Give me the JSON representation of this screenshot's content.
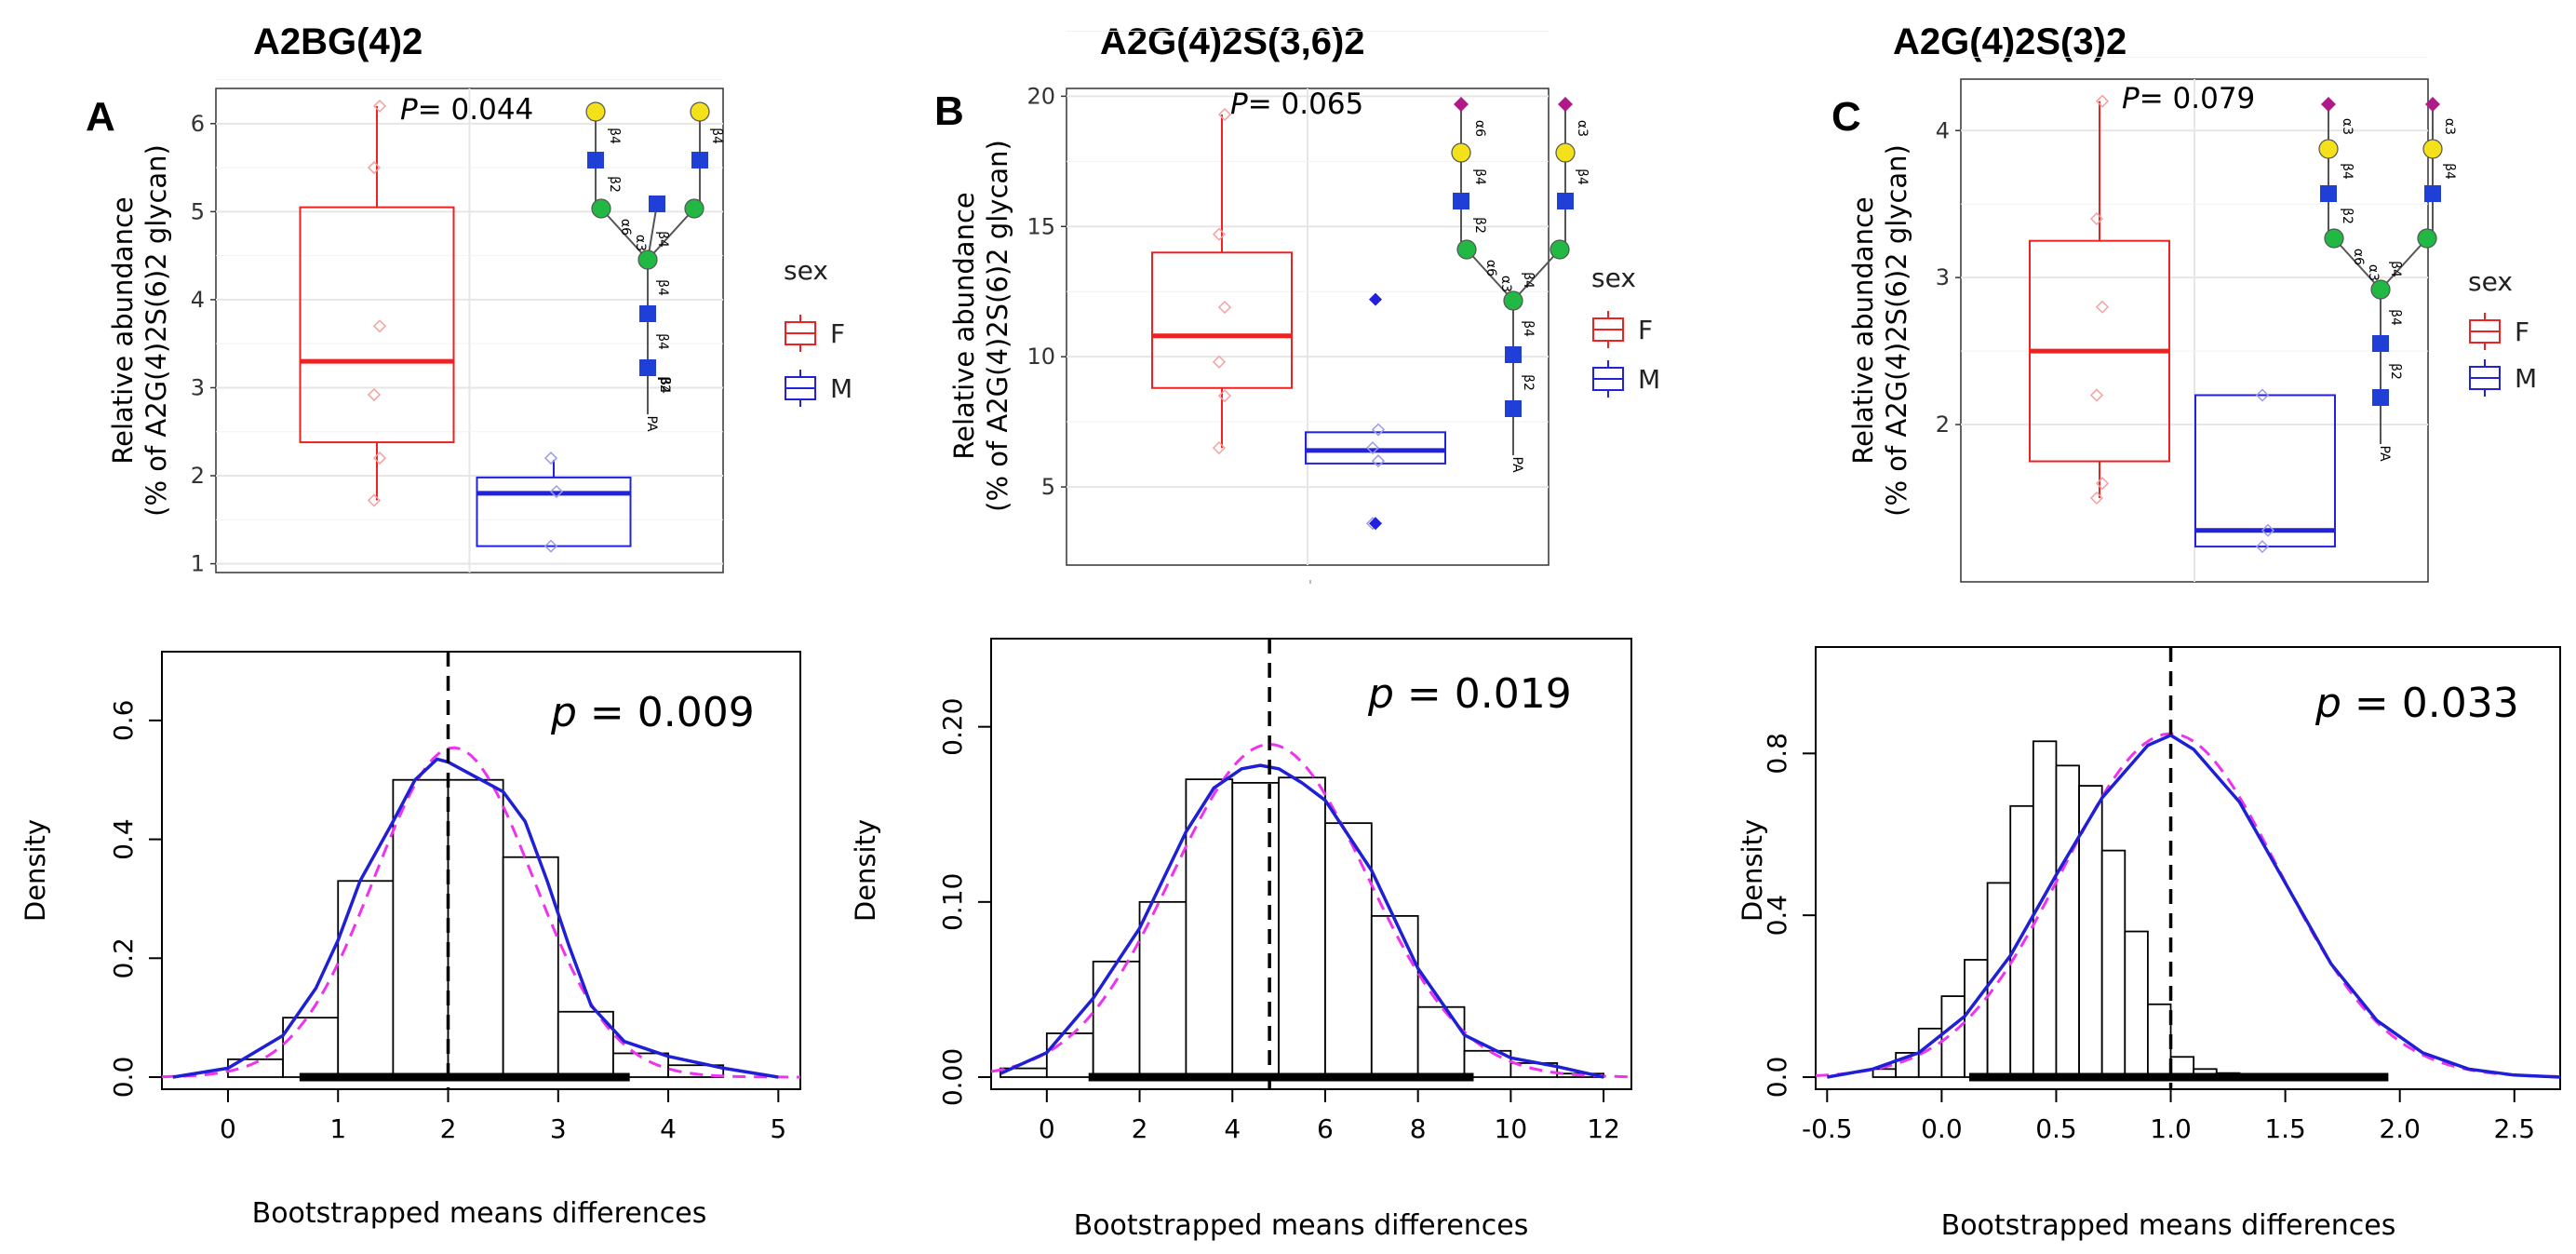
{
  "figure": {
    "panels": [
      {
        "letter": "A",
        "title": "A2BG(4)2",
        "glycan_labels": [
          "β4",
          "β2",
          "α6",
          "α3",
          "β4",
          "β4",
          "β4",
          "β4",
          "β2",
          "β4",
          "PA"
        ]
      },
      {
        "letter": "B",
        "title": "A2G(4)2S(3,6)2",
        "glycan_labels": [
          "α6",
          "β4",
          "β2",
          "α6",
          "α3",
          "β4",
          "β4",
          "α3",
          "β4",
          "β2",
          "PA"
        ]
      },
      {
        "letter": "C",
        "title": "A2G(4)2S(3)2",
        "glycan_labels": [
          "α3",
          "β4",
          "β2",
          "α6",
          "α3",
          "β4",
          "β4",
          "α3",
          "β4",
          "β2",
          "PA"
        ]
      }
    ],
    "legend": {
      "title": "sex",
      "F_label": "F",
      "M_label": "M",
      "F_color": "#ee2222",
      "M_color": "#2222dd"
    },
    "colors": {
      "hist_fit": "#1f1fd6",
      "normal_fit": "#ee33ee",
      "galactose": "#f5e11a",
      "glcnac": "#1f3fd6",
      "mannose": "#22b844",
      "sialic": "#b0198a"
    }
  },
  "chart_data": [
    {
      "type": "box",
      "panel": "A",
      "ylabel_line1": "Relative abundance",
      "ylabel_line2": "(% of A2G(4)2S(6)2 glycan)",
      "ylim": [
        0.9,
        6.4
      ],
      "yticks": [
        "1",
        "2",
        "3",
        "4",
        "5",
        "6"
      ],
      "p_symbol": "P",
      "p_value": "= 0.044",
      "groups": [
        {
          "name": "F",
          "min": 1.72,
          "q1": 2.38,
          "median": 3.3,
          "q3": 5.05,
          "max": 6.2,
          "points": [
            1.72,
            2.2,
            2.92,
            3.7,
            5.5,
            6.2
          ]
        },
        {
          "name": "M",
          "min": 1.2,
          "q1": 1.2,
          "median": 1.8,
          "q3": 1.98,
          "max": 2.18,
          "points": [
            1.2,
            1.82,
            2.2
          ]
        }
      ]
    },
    {
      "type": "box",
      "panel": "B",
      "ylabel_line1": "Relative abundance",
      "ylabel_line2": "(% of A2G(4)2S(6)2 glycan)",
      "ylim": [
        2.0,
        20.3
      ],
      "yticks": [
        "5",
        "10",
        "15",
        "20"
      ],
      "p_symbol": "P",
      "p_value": "= 0.065",
      "groups": [
        {
          "name": "F",
          "min": 6.5,
          "q1": 8.8,
          "median": 10.8,
          "q3": 14.0,
          "max": 19.3,
          "points": [
            6.5,
            8.5,
            9.8,
            11.9,
            14.7,
            19.3
          ]
        },
        {
          "name": "M",
          "min": 5.9,
          "q1": 5.9,
          "median": 6.4,
          "q3": 7.1,
          "max": 7.1,
          "points": [
            3.6,
            6.0,
            6.5,
            7.2
          ],
          "outliers": [
            3.6,
            12.2
          ]
        }
      ]
    },
    {
      "type": "box",
      "panel": "C",
      "ylabel_line1": "Relative abundance",
      "ylabel_line2": "(% of A2G(4)2S(6)2 glycan)",
      "ylim": [
        0.93,
        4.35
      ],
      "yticks": [
        "2",
        "3",
        "4"
      ],
      "p_symbol": "P",
      "p_value": "= 0.079",
      "groups": [
        {
          "name": "F",
          "min": 1.5,
          "q1": 1.75,
          "median": 2.5,
          "q3": 3.25,
          "max": 4.2,
          "points": [
            1.5,
            1.6,
            2.2,
            2.8,
            3.4,
            4.2
          ]
        },
        {
          "name": "M",
          "min": 1.17,
          "q1": 1.17,
          "median": 1.28,
          "q3": 2.2,
          "max": 2.2,
          "points": [
            1.17,
            1.28,
            2.2
          ]
        }
      ]
    },
    {
      "type": "histogram",
      "panel": "A",
      "xlabel": "Bootstrapped means differences",
      "ylabel": "Density",
      "xlim": [
        -0.6,
        5.2
      ],
      "ylim": [
        0,
        0.7
      ],
      "xticks": [
        "0",
        "1",
        "2",
        "3",
        "4",
        "5"
      ],
      "yticks": [
        "0.0",
        "0.2",
        "0.4",
        "0.6"
      ],
      "p_symbol": "p",
      "p_value": " = 0.009",
      "bin_start": 0,
      "bin_width": 0.5,
      "densities": [
        0.03,
        0.1,
        0.33,
        0.5,
        0.5,
        0.37,
        0.11,
        0.04,
        0.02,
        0.0
      ],
      "vline": 2.0,
      "ci": [
        0.65,
        3.65
      ],
      "kde_x": [
        -0.5,
        0.0,
        0.5,
        0.8,
        1.0,
        1.2,
        1.5,
        1.7,
        1.9,
        2.0,
        2.1,
        2.3,
        2.5,
        2.7,
        2.9,
        3.1,
        3.3,
        3.6,
        4.0,
        4.5,
        5.0
      ],
      "kde_y": [
        0.0,
        0.015,
        0.07,
        0.15,
        0.23,
        0.33,
        0.43,
        0.5,
        0.535,
        0.53,
        0.52,
        0.5,
        0.48,
        0.43,
        0.33,
        0.22,
        0.12,
        0.06,
        0.035,
        0.015,
        0.0
      ],
      "normal_mean": 2.05,
      "normal_sd": 0.72
    },
    {
      "type": "histogram",
      "panel": "B",
      "xlabel": "Bootstrapped means differences",
      "ylabel": "Density",
      "xlim": [
        -1.2,
        12.6
      ],
      "ylim": [
        0,
        0.245
      ],
      "xticks": [
        "0",
        "2",
        "4",
        "6",
        "8",
        "10",
        "12"
      ],
      "yticks": [
        "0.00",
        "0.10",
        "0.20"
      ],
      "p_symbol": "p",
      "p_value": " = 0.019",
      "bin_start": -1,
      "bin_width": 1,
      "densities": [
        0.005,
        0.025,
        0.066,
        0.1,
        0.17,
        0.168,
        0.171,
        0.145,
        0.092,
        0.04,
        0.015,
        0.008,
        0.002
      ],
      "vline": 4.8,
      "ci": [
        0.9,
        9.2
      ],
      "kde_x": [
        -1.0,
        0.0,
        1.0,
        2.0,
        3.0,
        3.6,
        4.2,
        4.6,
        5.0,
        5.5,
        6.0,
        7.0,
        8.0,
        9.0,
        10.0,
        11.0,
        12.0
      ],
      "kde_y": [
        0.002,
        0.014,
        0.045,
        0.085,
        0.14,
        0.165,
        0.176,
        0.178,
        0.176,
        0.168,
        0.158,
        0.118,
        0.062,
        0.024,
        0.011,
        0.006,
        0.0
      ],
      "normal_mean": 4.8,
      "normal_sd": 2.1
    },
    {
      "type": "histogram",
      "panel": "C",
      "xlabel": "Bootstrapped means differences",
      "ylabel": "Density",
      "xlim": [
        -0.55,
        2.7
      ],
      "ylim": [
        0,
        1.04
      ],
      "xticks": [
        "-0.5",
        "0.0",
        "0.5",
        "1.0",
        "1.5",
        "2.0",
        "2.5"
      ],
      "yticks": [
        "0.0",
        "0.4",
        "0.8"
      ],
      "p_symbol": "p",
      "p_value": " = 0.033",
      "bin_start": -0.3,
      "bin_width": 0.1,
      "densities": [
        0.02,
        0.06,
        0.12,
        0.2,
        0.29,
        0.48,
        0.67,
        0.83,
        0.77,
        0.72,
        0.56,
        0.36,
        0.18,
        0.05,
        0.02,
        0.01
      ],
      "vline": 1.0,
      "ci": [
        0.12,
        1.95
      ],
      "kde_x": [
        -0.5,
        -0.3,
        -0.1,
        0.1,
        0.3,
        0.5,
        0.7,
        0.9,
        1.0,
        1.1,
        1.3,
        1.5,
        1.7,
        1.9,
        2.1,
        2.3,
        2.5,
        2.7
      ],
      "kde_y": [
        0.0,
        0.02,
        0.06,
        0.15,
        0.3,
        0.5,
        0.69,
        0.82,
        0.845,
        0.81,
        0.68,
        0.48,
        0.28,
        0.14,
        0.06,
        0.02,
        0.005,
        0.0
      ],
      "normal_mean": 1.0,
      "normal_sd": 0.47
    }
  ]
}
